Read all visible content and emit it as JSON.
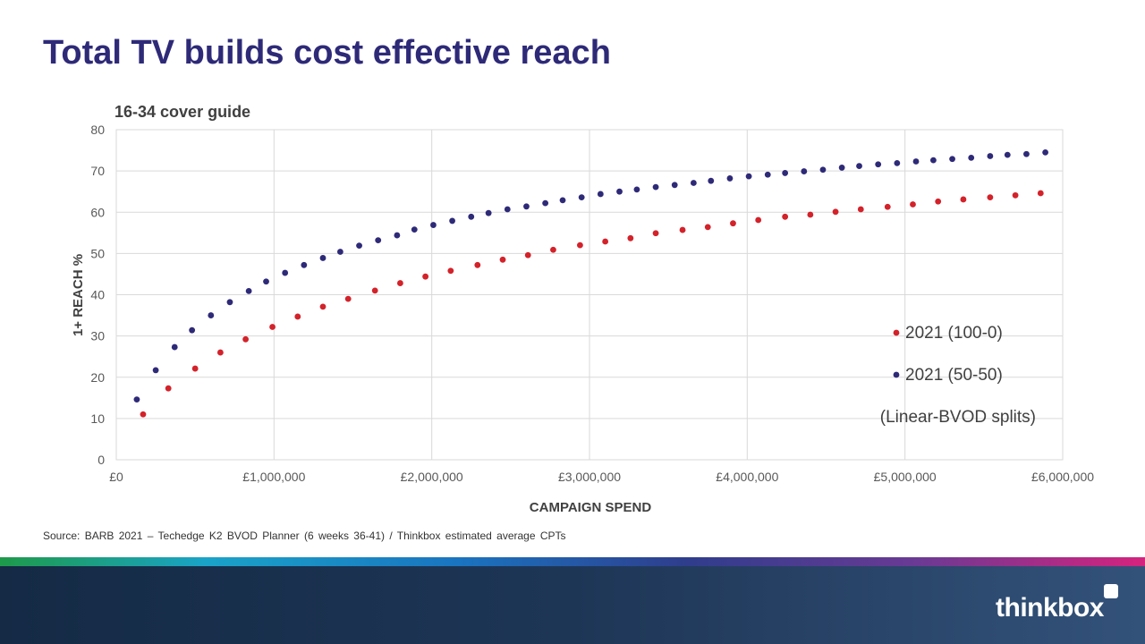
{
  "page": {
    "title": "Total TV builds cost effective reach",
    "source": "Source: BARB 2021 – Techedge K2 BVOD Planner (6 weeks 36-41) / Thinkbox estimated average CPTs",
    "logo": "thinkbox"
  },
  "chart_data": {
    "type": "scatter",
    "title": "16-34 cover guide",
    "xlabel": "CAMPAIGN SPEND",
    "ylabel": "1+ REACH %",
    "xlim": [
      0,
      6000000
    ],
    "ylim": [
      0,
      80
    ],
    "x_ticks": [
      0,
      1000000,
      2000000,
      3000000,
      4000000,
      5000000,
      6000000
    ],
    "x_tick_labels": [
      "£0",
      "£1,000,000",
      "£2,000,000",
      "£3,000,000",
      "£4,000,000",
      "£5,000,000",
      "£6,000,000"
    ],
    "y_ticks": [
      0,
      10,
      20,
      30,
      40,
      50,
      60,
      70,
      80
    ],
    "y_tick_labels": [
      "0",
      "10",
      "20",
      "30",
      "40",
      "50",
      "60",
      "70",
      "80"
    ],
    "grid": true,
    "legend_position": "bottom-right",
    "legend_note": "(Linear-BVOD splits)",
    "series": [
      {
        "name": "2021 (100-0)",
        "color": "#d3222a",
        "x": [
          170000,
          330000,
          500000,
          660000,
          820000,
          990000,
          1150000,
          1310000,
          1470000,
          1640000,
          1800000,
          1960000,
          2120000,
          2290000,
          2450000,
          2610000,
          2770000,
          2940000,
          3100000,
          3260000,
          3420000,
          3590000,
          3750000,
          3910000,
          4070000,
          4240000,
          4400000,
          4560000,
          4720000,
          4890000,
          5050000,
          5210000,
          5370000,
          5540000,
          5700000,
          5860000
        ],
        "y": [
          11.0,
          17.3,
          22.1,
          26.0,
          29.2,
          32.2,
          34.7,
          37.1,
          39.0,
          41.0,
          42.8,
          44.4,
          45.8,
          47.2,
          48.5,
          49.6,
          50.9,
          52.0,
          52.9,
          53.7,
          54.9,
          55.7,
          56.4,
          57.3,
          58.1,
          58.9,
          59.4,
          60.1,
          60.7,
          61.3,
          61.9,
          62.6,
          63.1,
          63.6,
          64.1,
          64.6
        ]
      },
      {
        "name": "2021 (50-50)",
        "color": "#2e2a78",
        "x": [
          130000,
          250000,
          370000,
          480000,
          600000,
          720000,
          840000,
          950000,
          1070000,
          1190000,
          1310000,
          1420000,
          1540000,
          1660000,
          1780000,
          1890000,
          2010000,
          2130000,
          2250000,
          2360000,
          2480000,
          2600000,
          2720000,
          2830000,
          2950000,
          3070000,
          3190000,
          3300000,
          3420000,
          3540000,
          3660000,
          3770000,
          3890000,
          4010000,
          4130000,
          4240000,
          4360000,
          4480000,
          4600000,
          4710000,
          4830000,
          4950000,
          5070000,
          5180000,
          5300000,
          5420000,
          5540000,
          5650000,
          5770000,
          5890000
        ],
        "y": [
          14.6,
          21.7,
          27.3,
          31.4,
          35.0,
          38.2,
          40.9,
          43.2,
          45.3,
          47.2,
          48.9,
          50.4,
          51.9,
          53.2,
          54.4,
          55.8,
          56.9,
          57.9,
          58.9,
          59.8,
          60.7,
          61.4,
          62.2,
          62.9,
          63.6,
          64.4,
          65.0,
          65.5,
          66.1,
          66.6,
          67.1,
          67.6,
          68.2,
          68.7,
          69.1,
          69.5,
          69.9,
          70.3,
          70.8,
          71.2,
          71.6,
          71.9,
          72.3,
          72.6,
          72.9,
          73.2,
          73.6,
          73.9,
          74.1,
          74.5
        ]
      }
    ]
  }
}
